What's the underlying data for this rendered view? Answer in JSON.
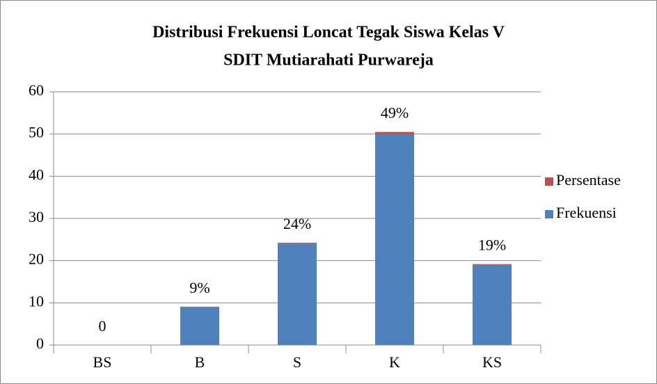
{
  "chart_data": {
    "type": "stacked_bar",
    "title": [
      "Distribusi Frekuensi Loncat Tegak Siswa Kelas V",
      "SDIT Mutiarahati Purwareja"
    ],
    "categories": [
      "BS",
      "B",
      "S",
      "K",
      "KS"
    ],
    "series": [
      {
        "name": "Frekuensi",
        "color": "#4f81bd",
        "values": [
          0,
          9,
          24,
          50,
          19
        ]
      },
      {
        "name": "Persentase",
        "color": "#c0504d",
        "values": [
          0,
          0.09,
          0.24,
          0.49,
          0.19
        ],
        "value_labels": [
          "0",
          "9%",
          "24%",
          "49%",
          "19%"
        ]
      }
    ],
    "ylim": [
      0,
      60
    ],
    "yticks": [
      0,
      10,
      20,
      30,
      40,
      50,
      60
    ],
    "grid": true,
    "legend": "right"
  }
}
